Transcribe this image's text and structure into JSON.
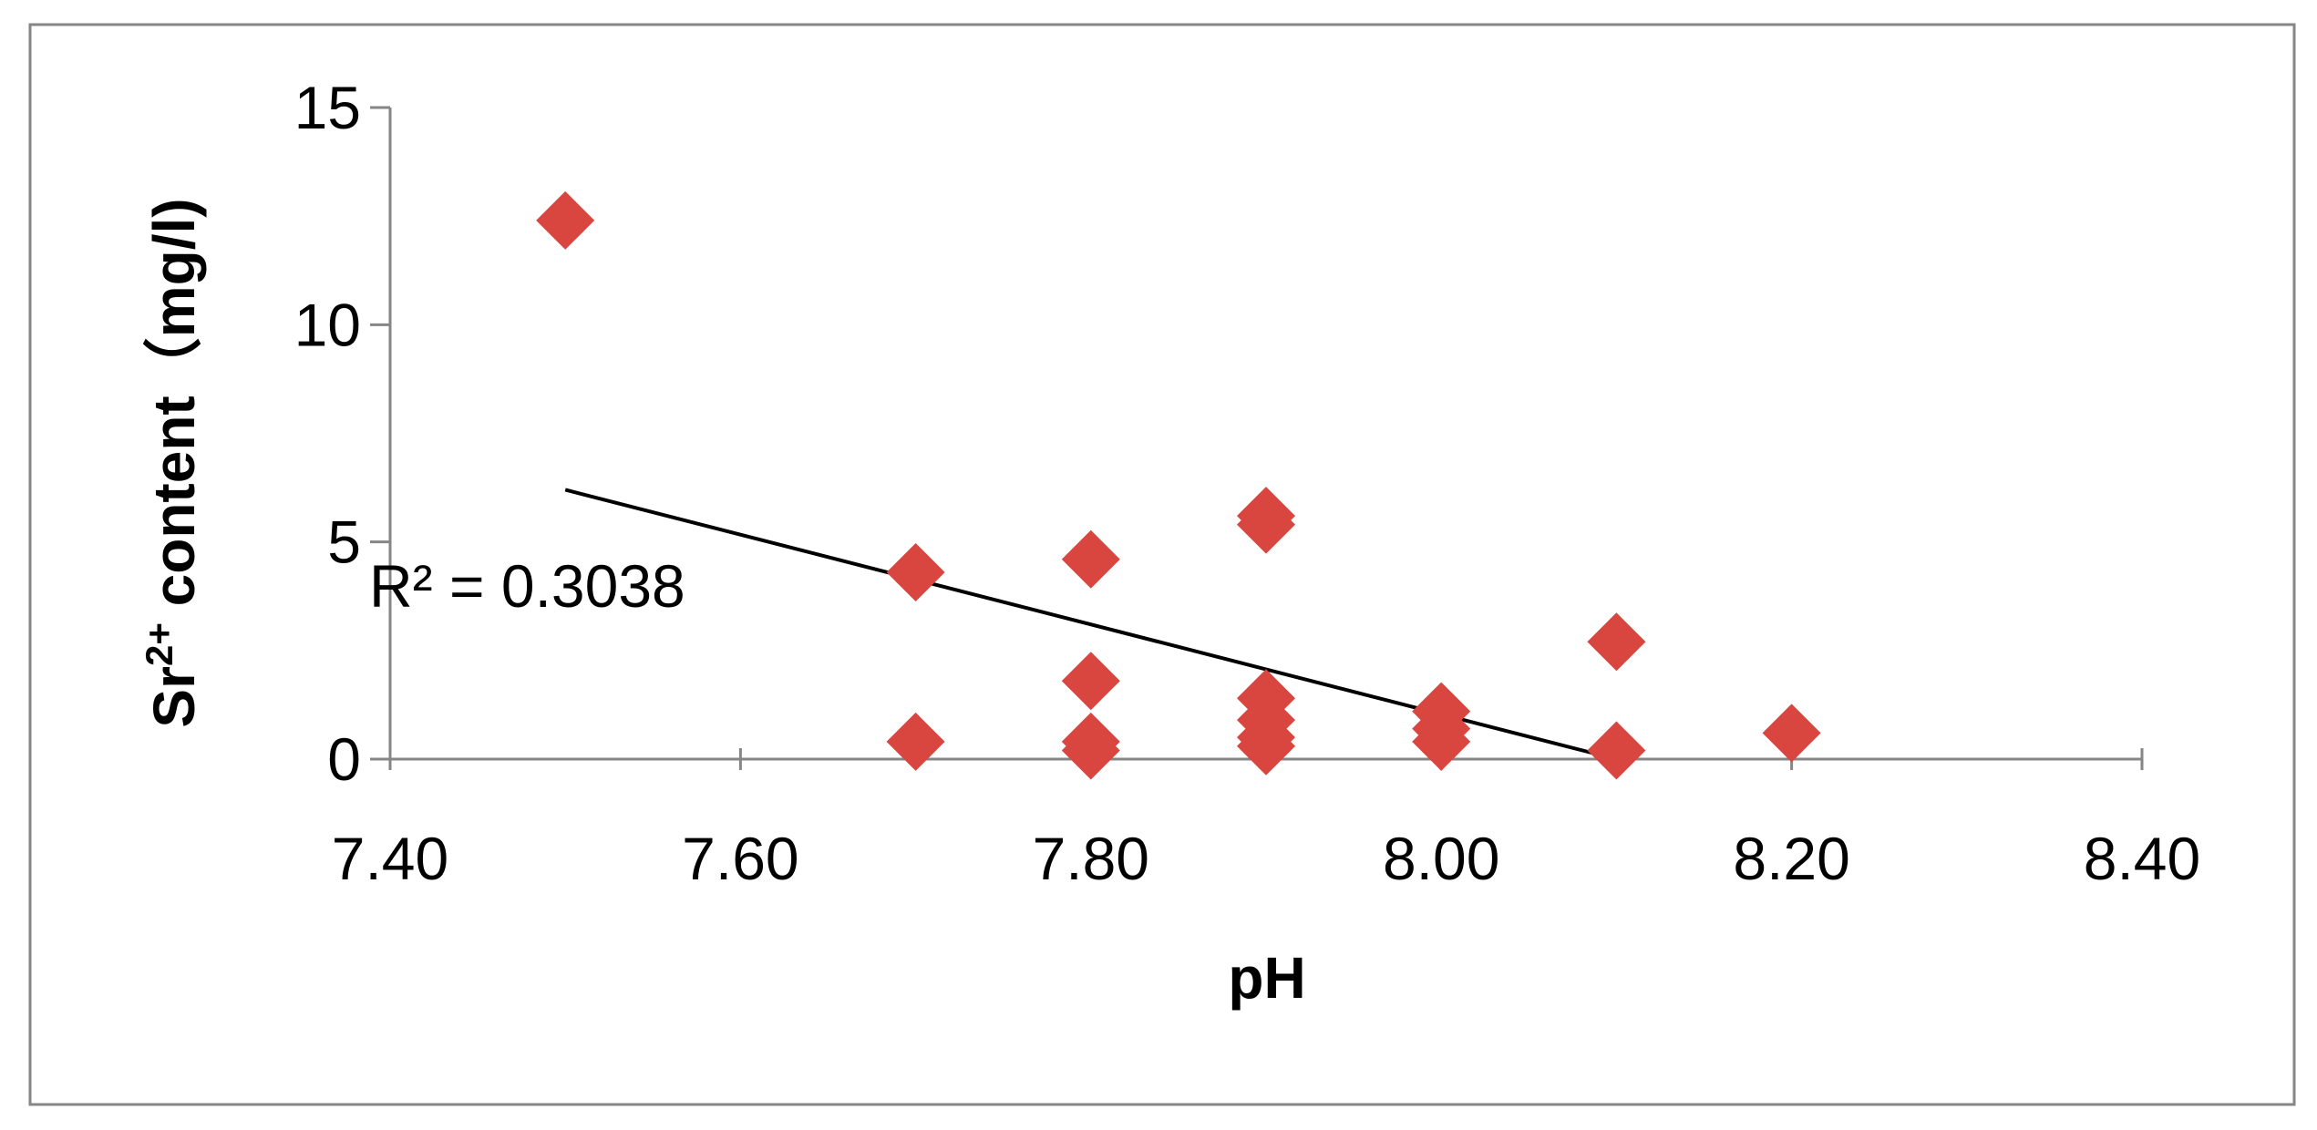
{
  "chart_data": {
    "type": "scatter",
    "xlabel": "pH",
    "ylabel_main": "Sr",
    "ylabel_sup": "2+",
    "ylabel_rest": " content（mg/l)",
    "xlim": [
      7.4,
      8.4
    ],
    "ylim": [
      0,
      15
    ],
    "x_ticks": [
      7.4,
      7.6,
      7.8,
      8.0,
      8.2,
      8.4
    ],
    "x_tick_labels": [
      "7.40",
      "7.60",
      "7.80",
      "8.00",
      "8.20",
      "8.40"
    ],
    "y_ticks": [
      0,
      5,
      10,
      15
    ],
    "y_tick_labels": [
      "0",
      "5",
      "10",
      "15"
    ],
    "grid": false,
    "legend": "none",
    "marker": "diamond",
    "marker_color": "#D9453F",
    "points": [
      {
        "x": 7.5,
        "y": 12.4
      },
      {
        "x": 7.7,
        "y": 4.3
      },
      {
        "x": 7.7,
        "y": 0.4
      },
      {
        "x": 7.8,
        "y": 4.6
      },
      {
        "x": 7.8,
        "y": 1.8
      },
      {
        "x": 7.8,
        "y": 0.4
      },
      {
        "x": 7.8,
        "y": 0.2
      },
      {
        "x": 7.9,
        "y": 5.6
      },
      {
        "x": 7.9,
        "y": 5.4
      },
      {
        "x": 7.9,
        "y": 1.4
      },
      {
        "x": 7.9,
        "y": 0.9
      },
      {
        "x": 7.9,
        "y": 0.5
      },
      {
        "x": 7.9,
        "y": 0.3
      },
      {
        "x": 8.0,
        "y": 1.1
      },
      {
        "x": 8.0,
        "y": 0.7
      },
      {
        "x": 8.0,
        "y": 0.4
      },
      {
        "x": 8.1,
        "y": 2.7
      },
      {
        "x": 8.1,
        "y": 0.2
      },
      {
        "x": 8.2,
        "y": 0.6
      }
    ],
    "trendline": {
      "type": "linear",
      "x_start": 7.5,
      "y_start": 6.2,
      "x_end": 8.1,
      "y_end": 0.0,
      "color": "#000000",
      "label": "R² = 0.3038"
    },
    "axis_color": "#868686",
    "frame_color": "#868686"
  }
}
